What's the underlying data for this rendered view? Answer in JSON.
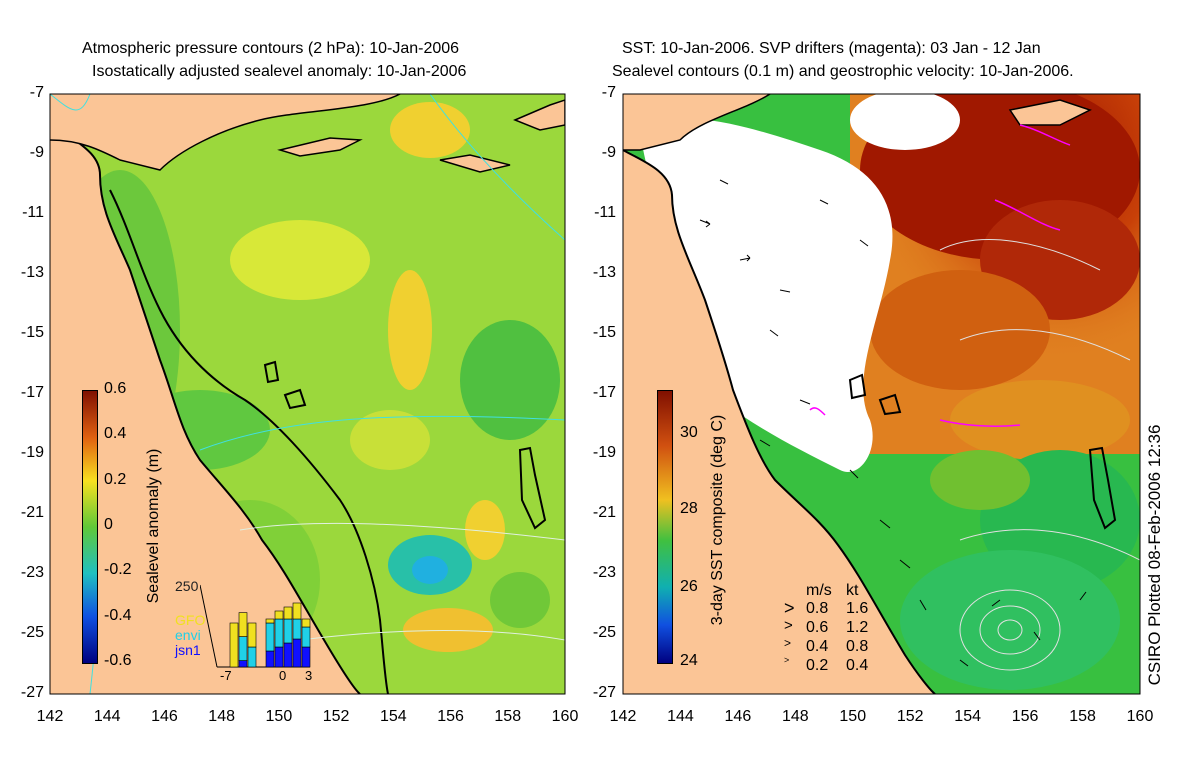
{
  "left_panel": {
    "title_line1": "Atmospheric pressure contours (2 hPa): 10-Jan-2006",
    "title_line2": "Isostatically adjusted sealevel anomaly: 10-Jan-2006",
    "y_ticks": [
      "-7",
      "-9",
      "-11",
      "-13",
      "-15",
      "-17",
      "-19",
      "-21",
      "-23",
      "-25",
      "-27"
    ],
    "x_ticks": [
      "142",
      "144",
      "146",
      "148",
      "150",
      "152",
      "154",
      "156",
      "158",
      "160"
    ],
    "colorbar": {
      "label": "Sealevel anomaly (m)",
      "ticks": [
        "0.6",
        "0.4",
        "0.2",
        "0",
        "-0.2",
        "-0.4",
        "-0.6"
      ]
    },
    "inset": {
      "y_max_label": "250",
      "legend": [
        "GFO",
        "envi",
        "jsn1"
      ],
      "legend_colors": [
        "#f0e020",
        "#20d0e8",
        "#1010ff"
      ],
      "x_ticks": [
        "-7",
        "0",
        "3"
      ],
      "bars": [
        {
          "GFO": 0.55,
          "envi": 0.0,
          "jsn1": 0.0
        },
        {
          "GFO": 0.3,
          "envi": 0.3,
          "jsn1": 0.08
        },
        {
          "GFO": 0.3,
          "envi": 0.25,
          "jsn1": 0.0
        },
        {
          "GFO": 0.0,
          "envi": 0.0,
          "jsn1": 0.0
        },
        {
          "GFO": 0.05,
          "envi": 0.35,
          "jsn1": 0.2
        },
        {
          "GFO": 0.1,
          "envi": 0.35,
          "jsn1": 0.25
        },
        {
          "GFO": 0.15,
          "envi": 0.3,
          "jsn1": 0.3
        },
        {
          "GFO": 0.2,
          "envi": 0.25,
          "jsn1": 0.35
        },
        {
          "GFO": 0.1,
          "envi": 0.25,
          "jsn1": 0.25
        }
      ]
    }
  },
  "right_panel": {
    "title_line1": "SST: 10-Jan-2006. SVP drifters (magenta): 03 Jan - 12 Jan",
    "title_line2": "Sealevel contours (0.1 m) and geostrophic velocity: 10-Jan-2006.",
    "y_ticks": [
      "-7",
      "-9",
      "-11",
      "-13",
      "-15",
      "-17",
      "-19",
      "-21",
      "-23",
      "-25",
      "-27"
    ],
    "x_ticks": [
      "142",
      "144",
      "146",
      "148",
      "150",
      "152",
      "154",
      "156",
      "158",
      "160"
    ],
    "colorbar": {
      "label": "3-day SST composite (deg C)",
      "ticks": [
        "30",
        "28",
        "26",
        "24"
      ]
    },
    "velocity_legend": {
      "header_ms": "m/s",
      "header_kt": "kt",
      "rows": [
        {
          "ms": "0.8",
          "kt": "1.6"
        },
        {
          "ms": "0.6",
          "kt": "1.2"
        },
        {
          "ms": "0.4",
          "kt": "0.8"
        },
        {
          "ms": "0.2",
          "kt": "0.4"
        }
      ]
    }
  },
  "credit": "CSIRO Plotted 08-Feb-2006 12:36",
  "colors": {
    "land": "#fbc596",
    "sla_base": "#9bd83c",
    "sst_white": "#ffffff",
    "sst_warm": "#b02000",
    "sst_green": "#38c040",
    "coast": "#000000",
    "pressure_contour": "#40e0e0",
    "drifter": "#ff00ff"
  }
}
